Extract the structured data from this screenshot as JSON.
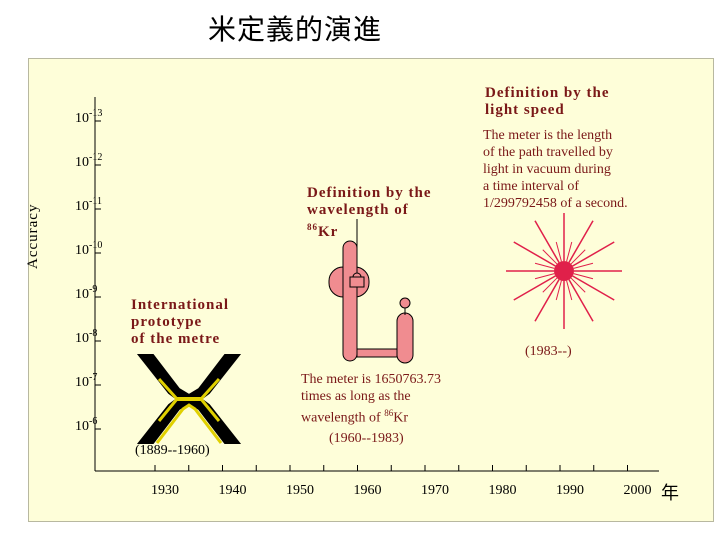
{
  "title": "米定義的演進",
  "axis": {
    "y_label": "Accuracy",
    "y_ticks": [
      {
        "base": "10",
        "exp": "-13"
      },
      {
        "base": "10",
        "exp": "-12"
      },
      {
        "base": "10",
        "exp": "-11"
      },
      {
        "base": "10",
        "exp": "-10"
      },
      {
        "base": "10",
        "exp": "-9"
      },
      {
        "base": "10",
        "exp": "-8"
      },
      {
        "base": "10",
        "exp": "-7"
      },
      {
        "base": "10",
        "exp": "-6"
      }
    ],
    "x_ticks": [
      "1930",
      "1940",
      "1950",
      "1960",
      "1970",
      "1980",
      "1990",
      "2000"
    ],
    "x_unit": "年"
  },
  "prototype": {
    "heading_lines": [
      "International",
      "prototype",
      "of the metre"
    ],
    "period": "(1889--1960)",
    "color": "#e0d000"
  },
  "krypton": {
    "heading_line1": "Definition by the",
    "heading_line2": "wavelength of",
    "heading_sup": "86",
    "heading_elem": "Kr",
    "body_lines": [
      "The meter is 1650763.73",
      "times as long as the"
    ],
    "body_line3_text": "wavelength of ",
    "body_line3_sup": "86",
    "body_line3_elem": "Kr",
    "period": "(1960--1983)",
    "color": "#f08c90"
  },
  "light": {
    "heading_lines": [
      "Definition by the",
      "light speed"
    ],
    "body_lines": [
      "The meter is the length",
      "of the path travelled by",
      "light in vacuum during",
      "a time interval of",
      "1/299792458 of a second."
    ],
    "period": "(1983--)",
    "color": "#e0204a"
  }
}
